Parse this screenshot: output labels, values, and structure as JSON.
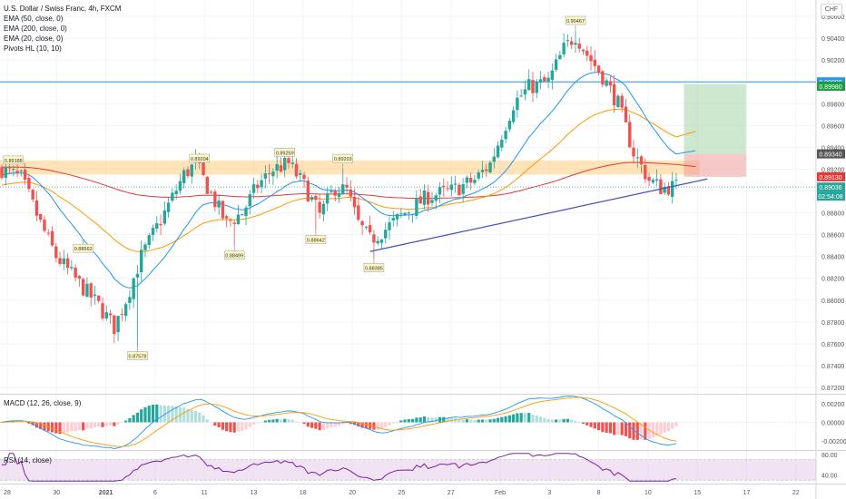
{
  "header": {
    "title": "U.S. Dollar / Swiss Franc, 4h, FXCM",
    "indicators": [
      "EMA (50, close, 0)",
      "EMA (200, close, 0)",
      "EMA (20, close, 0)",
      "Pivots HL (10, 10)"
    ],
    "currency": "CHF"
  },
  "panels": {
    "macd": "MACD (12, 26, close, 9)",
    "rsi": "RSI (14, close)"
  },
  "price_labels": {
    "level": "0.90000",
    "target": "0.89980",
    "entry": "0.89340",
    "stop": "0.89130",
    "last": "0.89036",
    "countdown": "02:54:08"
  },
  "colors": {
    "up": "#26a69a",
    "down": "#ef5350",
    "ema20": "#2196f3",
    "ema50": "#ff9800",
    "ema200": "#e53935",
    "rsi": "#7b1fa2",
    "trendline": "#3f51b5",
    "resistance_zone": "#ffcc80",
    "target_zone": "#a5d6a7",
    "stop_zone": "#ef9a9a"
  },
  "chart_data": [
    {
      "type": "candlestick",
      "title": "U.S. Dollar / Swiss Franc, 4h, FXCM",
      "ylim": [
        0.8715,
        0.9075
      ],
      "y_ticks": [
        "0.90600",
        "0.90400",
        "0.90200",
        "0.90000",
        "0.89800",
        "0.89600",
        "0.89400",
        "0.89200",
        "0.89000",
        "0.88800",
        "0.88600",
        "0.88400",
        "0.88200",
        "0.88000",
        "0.87800",
        "0.87600",
        "0.87400",
        "0.87200"
      ],
      "x_ticks": [
        "28",
        "30",
        "2021",
        "6",
        "11",
        "13",
        "18",
        "20",
        "25",
        "27",
        "Feb",
        "3",
        "8",
        "10",
        "15",
        "17",
        "22"
      ],
      "path_anchors": [
        [
          0,
          0.892
        ],
        [
          5,
          0.8912
        ],
        [
          10,
          0.887
        ],
        [
          14,
          0.884
        ],
        [
          20,
          0.8815
        ],
        [
          25,
          0.8795
        ],
        [
          29,
          0.8775
        ],
        [
          32,
          0.88
        ],
        [
          36,
          0.884
        ],
        [
          42,
          0.888
        ],
        [
          47,
          0.8915
        ],
        [
          50,
          0.8925
        ],
        [
          55,
          0.889
        ],
        [
          58,
          0.887
        ],
        [
          62,
          0.888
        ],
        [
          66,
          0.8905
        ],
        [
          70,
          0.892
        ],
        [
          74,
          0.8925
        ],
        [
          78,
          0.8905
        ],
        [
          82,
          0.8878
        ],
        [
          86,
          0.8903
        ],
        [
          89,
          0.89
        ],
        [
          92,
          0.887
        ],
        [
          95,
          0.8855
        ],
        [
          99,
          0.8865
        ],
        [
          104,
          0.888
        ],
        [
          110,
          0.8895
        ],
        [
          116,
          0.89
        ],
        [
          122,
          0.891
        ],
        [
          126,
          0.8925
        ],
        [
          132,
          0.898
        ],
        [
          136,
          0.8995
        ],
        [
          141,
          0.9
        ],
        [
          145,
          0.903
        ],
        [
          148,
          0.9043
        ],
        [
          151,
          0.9025
        ],
        [
          155,
          0.9005
        ],
        [
          159,
          0.898
        ],
        [
          163,
          0.8935
        ],
        [
          167,
          0.891
        ],
        [
          170,
          0.8903
        ],
        [
          174,
          0.8904
        ]
      ],
      "candle_count": 175,
      "pivots": [
        {
          "label": "0.89188",
          "type": "high",
          "i": 3,
          "value": 0.89188
        },
        {
          "label": "0.88562",
          "type": "low",
          "i": 21,
          "value": 0.88562
        },
        {
          "label": "0.87578",
          "type": "low",
          "i": 35,
          "value": 0.87578
        },
        {
          "label": "0.89204",
          "type": "high",
          "i": 51,
          "value": 0.89204
        },
        {
          "label": "0.88499",
          "type": "low",
          "i": 60,
          "value": 0.88499
        },
        {
          "label": "0.89259",
          "type": "high",
          "i": 73,
          "value": 0.89259
        },
        {
          "label": "0.88642",
          "type": "low",
          "i": 81,
          "value": 0.88642
        },
        {
          "label": "0.89203",
          "type": "high",
          "i": 88,
          "value": 0.89203
        },
        {
          "label": "0.88385",
          "type": "low",
          "i": 96,
          "value": 0.88385
        },
        {
          "label": "0.90467",
          "type": "high",
          "i": 148,
          "value": 0.90467
        }
      ],
      "horizontal_level": 0.9,
      "resistance_zone": [
        0.8915,
        0.8928
      ],
      "trendline": [
        [
          95,
          0.88445
        ],
        [
          182,
          0.8911
        ]
      ],
      "position": {
        "entry": 0.8934,
        "target": 0.8998,
        "stop": 0.8913,
        "start_i": 176,
        "end_i": 192
      },
      "last_price": 0.89036
    },
    {
      "type": "line",
      "title": "MACD (12, 26, close, 9)",
      "y_ticks": [
        "0.00200",
        "0.00000",
        "-0.00200"
      ],
      "ylim": [
        -0.0029,
        0.0029
      ]
    },
    {
      "type": "line",
      "title": "RSI (14, close)",
      "y_ticks": [
        "80.00",
        "40.00"
      ],
      "ylim": [
        25,
        85
      ],
      "band": [
        30,
        70
      ]
    }
  ]
}
